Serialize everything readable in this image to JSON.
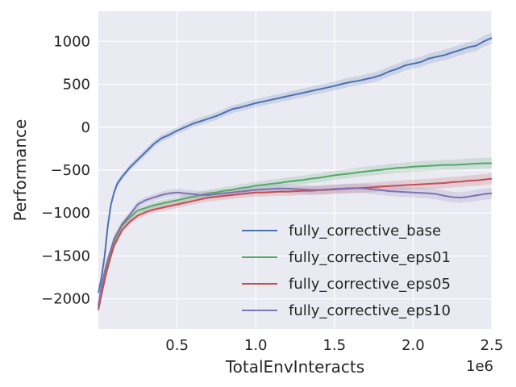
{
  "chart_data": {
    "type": "line",
    "xlabel": "TotalEnvInteracts",
    "ylabel": "Performance",
    "x_offset_text": "1e6",
    "xlim": [
      0,
      2.5
    ],
    "ylim": [
      -2350,
      1350
    ],
    "x_ticks": [
      0.5,
      1.0,
      1.5,
      2.0,
      2.5
    ],
    "x_tick_labels": [
      "0.5",
      "1.0",
      "1.5",
      "2.0",
      "2.5"
    ],
    "y_ticks": [
      1000,
      500,
      0,
      -500,
      -1000,
      -1500,
      -2000
    ],
    "y_tick_labels": [
      "1000",
      "500",
      "0",
      "−500",
      "−1000",
      "−1500",
      "−2000"
    ],
    "grid": true,
    "legend_position": "lower-right",
    "background": "#eaeaf2",
    "series": [
      {
        "name": "fully_corrective_base",
        "color": "#4c72b0",
        "points": [
          [
            0.0,
            -1930
          ],
          [
            0.02,
            -1750
          ],
          [
            0.04,
            -1500
          ],
          [
            0.06,
            -1150
          ],
          [
            0.08,
            -900
          ],
          [
            0.1,
            -760
          ],
          [
            0.12,
            -660
          ],
          [
            0.15,
            -580
          ],
          [
            0.2,
            -470
          ],
          [
            0.25,
            -380
          ],
          [
            0.3,
            -290
          ],
          [
            0.35,
            -200
          ],
          [
            0.4,
            -130
          ],
          [
            0.45,
            -90
          ],
          [
            0.5,
            -40
          ],
          [
            0.55,
            0
          ],
          [
            0.6,
            40
          ],
          [
            0.65,
            70
          ],
          [
            0.7,
            100
          ],
          [
            0.75,
            130
          ],
          [
            0.8,
            170
          ],
          [
            0.85,
            210
          ],
          [
            0.9,
            230
          ],
          [
            0.95,
            255
          ],
          [
            1.0,
            280
          ],
          [
            1.05,
            300
          ],
          [
            1.1,
            320
          ],
          [
            1.15,
            340
          ],
          [
            1.2,
            360
          ],
          [
            1.25,
            380
          ],
          [
            1.3,
            400
          ],
          [
            1.35,
            420
          ],
          [
            1.4,
            440
          ],
          [
            1.45,
            460
          ],
          [
            1.5,
            480
          ],
          [
            1.55,
            505
          ],
          [
            1.6,
            525
          ],
          [
            1.65,
            540
          ],
          [
            1.7,
            560
          ],
          [
            1.75,
            580
          ],
          [
            1.8,
            610
          ],
          [
            1.85,
            650
          ],
          [
            1.9,
            680
          ],
          [
            1.95,
            720
          ],
          [
            2.0,
            740
          ],
          [
            2.05,
            760
          ],
          [
            2.1,
            800
          ],
          [
            2.15,
            820
          ],
          [
            2.2,
            840
          ],
          [
            2.25,
            870
          ],
          [
            2.3,
            900
          ],
          [
            2.35,
            930
          ],
          [
            2.4,
            950
          ],
          [
            2.45,
            1000
          ],
          [
            2.5,
            1040
          ]
        ]
      },
      {
        "name": "fully_corrective_eps01",
        "color": "#55a868",
        "points": [
          [
            0.0,
            -2100
          ],
          [
            0.02,
            -1900
          ],
          [
            0.05,
            -1650
          ],
          [
            0.08,
            -1450
          ],
          [
            0.1,
            -1330
          ],
          [
            0.15,
            -1150
          ],
          [
            0.2,
            -1050
          ],
          [
            0.25,
            -970
          ],
          [
            0.3,
            -940
          ],
          [
            0.35,
            -910
          ],
          [
            0.4,
            -890
          ],
          [
            0.45,
            -870
          ],
          [
            0.5,
            -850
          ],
          [
            0.55,
            -830
          ],
          [
            0.6,
            -810
          ],
          [
            0.65,
            -790
          ],
          [
            0.7,
            -770
          ],
          [
            0.75,
            -760
          ],
          [
            0.8,
            -740
          ],
          [
            0.85,
            -730
          ],
          [
            0.9,
            -710
          ],
          [
            0.95,
            -700
          ],
          [
            1.0,
            -680
          ],
          [
            1.05,
            -670
          ],
          [
            1.1,
            -660
          ],
          [
            1.15,
            -650
          ],
          [
            1.2,
            -635
          ],
          [
            1.25,
            -625
          ],
          [
            1.3,
            -615
          ],
          [
            1.35,
            -600
          ],
          [
            1.4,
            -590
          ],
          [
            1.45,
            -575
          ],
          [
            1.5,
            -560
          ],
          [
            1.55,
            -550
          ],
          [
            1.6,
            -540
          ],
          [
            1.65,
            -525
          ],
          [
            1.7,
            -515
          ],
          [
            1.75,
            -505
          ],
          [
            1.8,
            -495
          ],
          [
            1.85,
            -485
          ],
          [
            1.9,
            -475
          ],
          [
            1.95,
            -470
          ],
          [
            2.0,
            -460
          ],
          [
            2.05,
            -455
          ],
          [
            2.1,
            -450
          ],
          [
            2.15,
            -445
          ],
          [
            2.2,
            -440
          ],
          [
            2.25,
            -440
          ],
          [
            2.3,
            -435
          ],
          [
            2.35,
            -430
          ],
          [
            2.4,
            -425
          ],
          [
            2.45,
            -420
          ],
          [
            2.5,
            -420
          ]
        ]
      },
      {
        "name": "fully_corrective_eps05",
        "color": "#c44e52",
        "points": [
          [
            0.0,
            -2130
          ],
          [
            0.02,
            -1950
          ],
          [
            0.05,
            -1700
          ],
          [
            0.08,
            -1500
          ],
          [
            0.1,
            -1380
          ],
          [
            0.15,
            -1200
          ],
          [
            0.2,
            -1100
          ],
          [
            0.25,
            -1030
          ],
          [
            0.3,
            -990
          ],
          [
            0.35,
            -960
          ],
          [
            0.4,
            -940
          ],
          [
            0.45,
            -920
          ],
          [
            0.5,
            -900
          ],
          [
            0.55,
            -880
          ],
          [
            0.6,
            -860
          ],
          [
            0.65,
            -840
          ],
          [
            0.7,
            -820
          ],
          [
            0.75,
            -810
          ],
          [
            0.8,
            -800
          ],
          [
            0.85,
            -790
          ],
          [
            0.9,
            -780
          ],
          [
            0.95,
            -770
          ],
          [
            1.0,
            -760
          ],
          [
            1.05,
            -760
          ],
          [
            1.1,
            -755
          ],
          [
            1.15,
            -750
          ],
          [
            1.2,
            -750
          ],
          [
            1.25,
            -745
          ],
          [
            1.3,
            -740
          ],
          [
            1.35,
            -740
          ],
          [
            1.4,
            -735
          ],
          [
            1.45,
            -730
          ],
          [
            1.5,
            -725
          ],
          [
            1.55,
            -720
          ],
          [
            1.6,
            -715
          ],
          [
            1.65,
            -710
          ],
          [
            1.7,
            -705
          ],
          [
            1.75,
            -700
          ],
          [
            1.8,
            -690
          ],
          [
            1.85,
            -685
          ],
          [
            1.9,
            -680
          ],
          [
            1.95,
            -675
          ],
          [
            2.0,
            -670
          ],
          [
            2.05,
            -665
          ],
          [
            2.1,
            -660
          ],
          [
            2.15,
            -655
          ],
          [
            2.2,
            -650
          ],
          [
            2.25,
            -640
          ],
          [
            2.3,
            -635
          ],
          [
            2.35,
            -625
          ],
          [
            2.4,
            -620
          ],
          [
            2.45,
            -610
          ],
          [
            2.5,
            -600
          ]
        ]
      },
      {
        "name": "fully_corrective_eps10",
        "color": "#8172b2",
        "points": [
          [
            0.0,
            -2080
          ],
          [
            0.02,
            -1850
          ],
          [
            0.05,
            -1600
          ],
          [
            0.08,
            -1420
          ],
          [
            0.1,
            -1300
          ],
          [
            0.15,
            -1130
          ],
          [
            0.2,
            -1020
          ],
          [
            0.25,
            -900
          ],
          [
            0.3,
            -850
          ],
          [
            0.35,
            -820
          ],
          [
            0.4,
            -790
          ],
          [
            0.45,
            -770
          ],
          [
            0.5,
            -760
          ],
          [
            0.55,
            -770
          ],
          [
            0.6,
            -780
          ],
          [
            0.65,
            -790
          ],
          [
            0.7,
            -790
          ],
          [
            0.75,
            -780
          ],
          [
            0.8,
            -770
          ],
          [
            0.85,
            -760
          ],
          [
            0.9,
            -750
          ],
          [
            0.95,
            -740
          ],
          [
            1.0,
            -730
          ],
          [
            1.05,
            -725
          ],
          [
            1.1,
            -720
          ],
          [
            1.15,
            -715
          ],
          [
            1.2,
            -715
          ],
          [
            1.25,
            -720
          ],
          [
            1.3,
            -725
          ],
          [
            1.35,
            -730
          ],
          [
            1.4,
            -730
          ],
          [
            1.45,
            -725
          ],
          [
            1.5,
            -720
          ],
          [
            1.55,
            -715
          ],
          [
            1.6,
            -710
          ],
          [
            1.65,
            -710
          ],
          [
            1.7,
            -715
          ],
          [
            1.75,
            -725
          ],
          [
            1.8,
            -735
          ],
          [
            1.85,
            -745
          ],
          [
            1.9,
            -750
          ],
          [
            1.95,
            -755
          ],
          [
            2.0,
            -760
          ],
          [
            2.05,
            -765
          ],
          [
            2.1,
            -770
          ],
          [
            2.15,
            -780
          ],
          [
            2.2,
            -800
          ],
          [
            2.25,
            -815
          ],
          [
            2.3,
            -820
          ],
          [
            2.35,
            -810
          ],
          [
            2.4,
            -795
          ],
          [
            2.45,
            -780
          ],
          [
            2.5,
            -770
          ]
        ]
      }
    ]
  }
}
